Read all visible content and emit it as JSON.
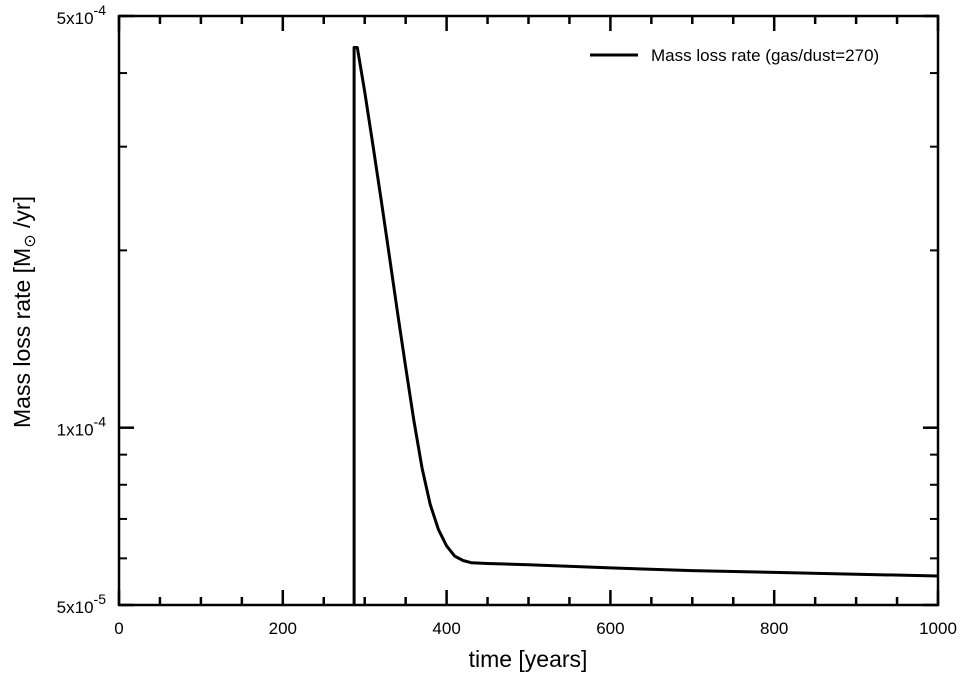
{
  "chart_data": {
    "type": "line",
    "title": "",
    "xlabel": "time [years]",
    "ylabel": {
      "prefix": "Mass loss rate [M",
      "sym": "⊙",
      "suffix": " /yr]"
    },
    "xlim": [
      0,
      1000
    ],
    "ylim": [
      5e-05,
      0.0005
    ],
    "yscale": "log",
    "grid": false,
    "legend_position": "top-right",
    "x_ticks": [
      {
        "value": 0,
        "label": "0"
      },
      {
        "value": 200,
        "label": "200"
      },
      {
        "value": 400,
        "label": "400"
      },
      {
        "value": 600,
        "label": "600"
      },
      {
        "value": 800,
        "label": "800"
      },
      {
        "value": 1000,
        "label": "1000"
      }
    ],
    "y_ticks": [
      {
        "value": 0.0005,
        "mant": "5x10",
        "exp": "-4"
      },
      {
        "value": 0.0001,
        "mant": "1x10",
        "exp": "-4"
      },
      {
        "value": 5e-05,
        "mant": "5x10",
        "exp": "-5"
      }
    ],
    "series": [
      {
        "name": "Mass loss rate (gas/dust=270)",
        "color": "#000000",
        "x": [
          287,
          287,
          291,
          300,
          310,
          320,
          330,
          340,
          350,
          360,
          370,
          380,
          390,
          400,
          410,
          420,
          430,
          440,
          450,
          500,
          600,
          700,
          800,
          900,
          1000
        ],
        "y": [
          5e-05,
          0.000442,
          0.000442,
          0.000372,
          0.000302,
          0.000244,
          0.000196,
          0.000157,
          0.000127,
          0.000103,
          8.55e-05,
          7.41e-05,
          6.72e-05,
          6.3e-05,
          6.05e-05,
          5.95e-05,
          5.9e-05,
          5.89e-05,
          5.88e-05,
          5.85e-05,
          5.78e-05,
          5.72e-05,
          5.68e-05,
          5.64e-05,
          5.6e-05
        ]
      }
    ]
  }
}
